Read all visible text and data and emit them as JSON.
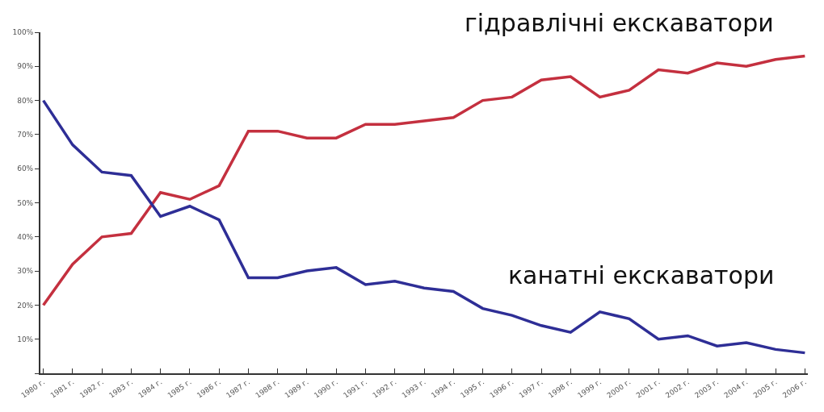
{
  "chart_data": {
    "type": "line",
    "categories": [
      "1980 г.",
      "1981 г.",
      "1982 г.",
      "1983 г.",
      "1984 г.",
      "1985 г.",
      "1986 г.",
      "1987 г.",
      "1988 г.",
      "1989 г.",
      "1990 г.",
      "1991 г.",
      "1992 г.",
      "1993 г.",
      "1994 г.",
      "1995 г.",
      "1996 г.",
      "1997 г.",
      "1998 г.",
      "1999 г.",
      "2000 г.",
      "2001 г.",
      "2002 г.",
      "2003 г.",
      "2004 г.",
      "2005 г.",
      "2006 г."
    ],
    "series": [
      {
        "name": "гідравлічні екскаватори",
        "color": "#c4303f",
        "values": [
          20,
          32,
          40,
          41,
          53,
          51,
          55,
          71,
          71,
          69,
          69,
          73,
          73,
          74,
          75,
          80,
          81,
          86,
          87,
          81,
          83,
          89,
          88,
          91,
          90,
          92,
          93
        ]
      },
      {
        "name": "канатні екскаватори",
        "color": "#2e2e96",
        "values": [
          80,
          67,
          59,
          58,
          46,
          49,
          45,
          28,
          28,
          30,
          31,
          26,
          27,
          25,
          24,
          19,
          17,
          14,
          12,
          18,
          16,
          10,
          11,
          8,
          9,
          7,
          6
        ]
      }
    ],
    "ylim": [
      0,
      100
    ],
    "yticks": [
      {
        "value": 0,
        "label": null
      },
      {
        "value": 10,
        "label": "10%"
      },
      {
        "value": 20,
        "label": "20%"
      },
      {
        "value": 30,
        "label": "30%"
      },
      {
        "value": 40,
        "label": "40%"
      },
      {
        "value": 50,
        "label": "50%"
      },
      {
        "value": 60,
        "label": "60%"
      },
      {
        "value": 70,
        "label": "70%"
      },
      {
        "value": 80,
        "label": "80%"
      },
      {
        "value": 90,
        "label": "90%"
      },
      {
        "value": 100,
        "label": "100%"
      }
    ],
    "grid": false,
    "legend": false,
    "marker": "none",
    "line_style": "solid"
  }
}
